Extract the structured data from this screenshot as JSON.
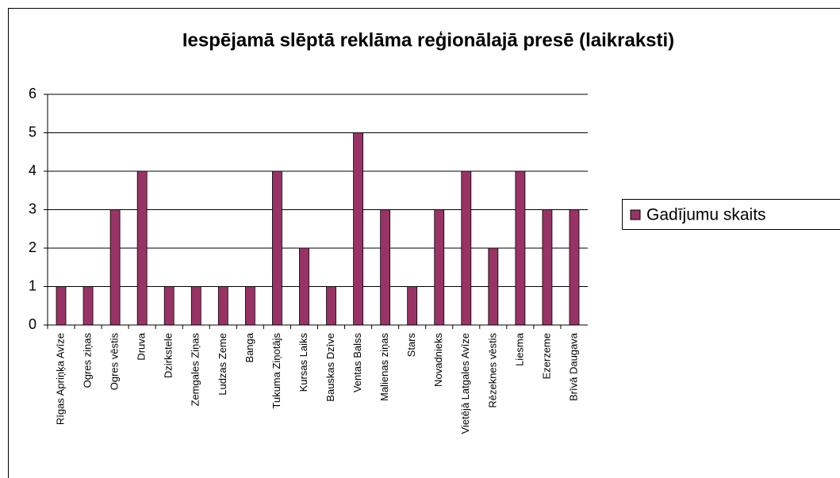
{
  "chart_data": {
    "type": "bar",
    "title": "Iespējamā slēptā reklāma reģionālajā presē (laikraksti)",
    "categories": [
      "Rīgas Apriņķa Avīze",
      "Ogres ziņas",
      "Ogres vēstis",
      "Druva",
      "Dzirkstele",
      "Zemgales Ziņas",
      "Ludzas Zeme",
      "Banga",
      "Tukuma Ziņotājs",
      "Kursas Laiks",
      "Bauskas Dzīve",
      "Ventas Balss",
      "Malienas ziņas",
      "Stars",
      "Novadnieks",
      "Vietējā Latgales Avīze",
      "Rēzeknes vēstis",
      "Liesma",
      "Ezerzeme",
      "Brīvā Daugava"
    ],
    "series": [
      {
        "name": "Gadījumu skaits",
        "color": "#993366",
        "values": [
          1,
          1,
          3,
          4,
          1,
          1,
          1,
          1,
          4,
          2,
          1,
          5,
          3,
          1,
          3,
          4,
          2,
          4,
          3,
          3
        ]
      }
    ],
    "ylim": [
      0,
      6
    ],
    "yticks": [
      0,
      1,
      2,
      3,
      4,
      5,
      6
    ],
    "grid": true,
    "legend": "right"
  }
}
